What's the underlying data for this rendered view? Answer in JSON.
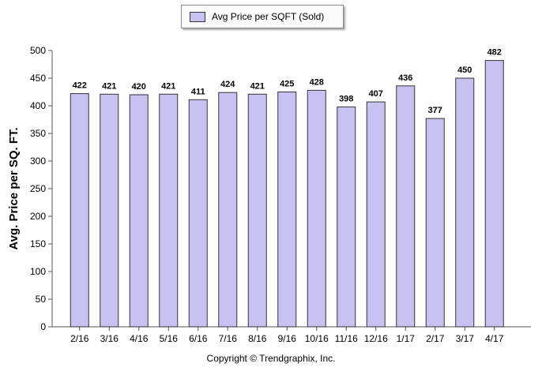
{
  "chart_data": {
    "type": "bar",
    "ylabel": "Avg. Price per SQ. FT.",
    "xlabel": "",
    "ylim": [
      0,
      500
    ],
    "yticks": [
      0,
      50,
      100,
      150,
      200,
      250,
      300,
      350,
      400,
      450,
      500
    ],
    "categories": [
      "2/16",
      "3/16",
      "4/16",
      "5/16",
      "6/16",
      "7/16",
      "8/16",
      "9/16",
      "10/16",
      "11/16",
      "12/16",
      "1/17",
      "2/17",
      "3/17",
      "4/17"
    ],
    "series": [
      {
        "name": "Avg Price per SQFT (Sold)",
        "values": [
          422,
          421,
          420,
          421,
          411,
          424,
          421,
          425,
          428,
          398,
          407,
          436,
          377,
          450,
          482
        ]
      }
    ],
    "legend": "top-center",
    "grid": false,
    "bar_color": "#c7c2f2",
    "bar_edge_color": "#333333",
    "data_labels": true
  },
  "footer": {
    "copyright": "Copyright © Trendgraphix, Inc."
  }
}
